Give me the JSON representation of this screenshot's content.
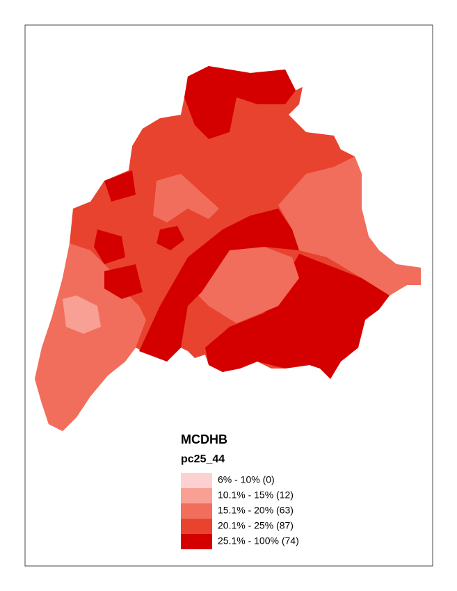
{
  "legend": {
    "title": "MCDHB",
    "subtitle": "pc25_44",
    "items": [
      {
        "label": "6% - 10% (0)",
        "color": "#fdd0d2"
      },
      {
        "label": "10.1% - 15% (12)",
        "color": "#f9a095"
      },
      {
        "label": "15.1% - 20% (63)",
        "color": "#f26e5c"
      },
      {
        "label": "20.1% - 25% (87)",
        "color": "#e8432f"
      },
      {
        "label": "25.1% - 100% (74)",
        "color": "#d40000"
      }
    ]
  }
}
